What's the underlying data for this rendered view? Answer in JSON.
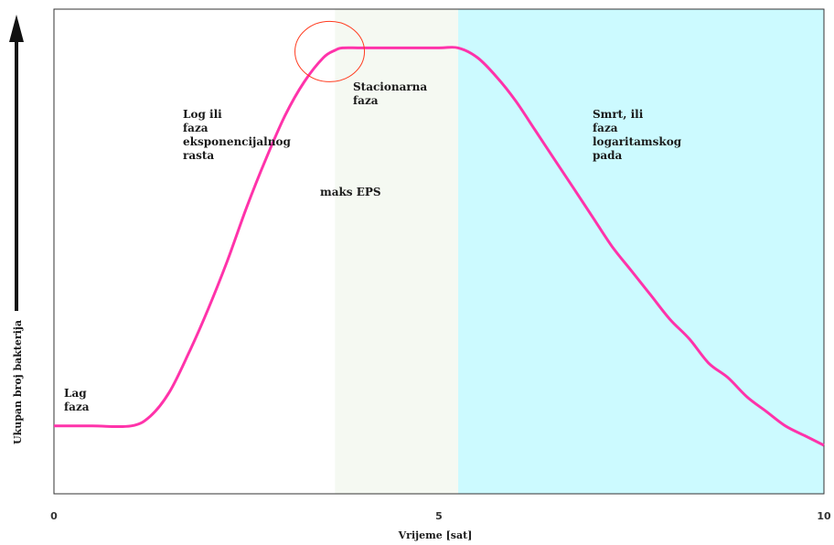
{
  "chart_data": {
    "type": "line",
    "xlabel": "Vrijeme [sat]",
    "ylabel": "Ukupan broj bakterija",
    "xlim": [
      0,
      10
    ],
    "ylim": [
      0,
      100
    ],
    "x_ticks": [
      "0",
      "5",
      "10"
    ],
    "grid": false,
    "series": [
      {
        "color": "#ff33aa",
        "x": [
          0,
          0.5,
          1.0,
          1.25,
          1.5,
          1.75,
          2.0,
          2.25,
          2.5,
          2.75,
          3.0,
          3.25,
          3.5,
          3.65,
          3.75,
          4.0,
          4.5,
          5.0,
          5.25,
          5.5,
          5.75,
          6.0,
          6.25,
          6.5,
          6.75,
          7.0,
          7.25,
          7.5,
          7.75,
          8.0,
          8.25,
          8.5,
          8.75,
          9.0,
          9.25,
          9.5,
          9.75,
          10.0
        ],
        "y": [
          14,
          14,
          14,
          16,
          21,
          29,
          38,
          48,
          59,
          69,
          78,
          85,
          90,
          91.5,
          92,
          92,
          92,
          92,
          92,
          90,
          86,
          81,
          75,
          69,
          63,
          57,
          51,
          46,
          41,
          36,
          32,
          27,
          24,
          20,
          17,
          14,
          12,
          10
        ]
      }
    ],
    "phases": [
      {
        "label_lines": [
          "Lag",
          "faza"
        ],
        "x_start": 0,
        "x_end": 3.65,
        "color": "#ffffff"
      },
      {
        "label_lines": [
          "Log ili",
          "faza",
          "eksponencijalnog",
          "rasta"
        ],
        "x_start": 0,
        "x_end": 3.65,
        "color": "#ffffff"
      },
      {
        "label_lines": [
          "Stacionarna",
          "faza"
        ],
        "x_start": 3.65,
        "x_end": 5.25,
        "color": "#f5f9f2"
      },
      {
        "label_lines": [
          "Smrt, ili",
          "faza",
          "logaritamskog",
          "pada"
        ],
        "x_start": 5.25,
        "x_end": 10,
        "color": "#ccfaff"
      }
    ],
    "annotation": {
      "text": "maks EPS",
      "x": 3.7,
      "y": 92,
      "color": "#ff3b1f"
    }
  }
}
